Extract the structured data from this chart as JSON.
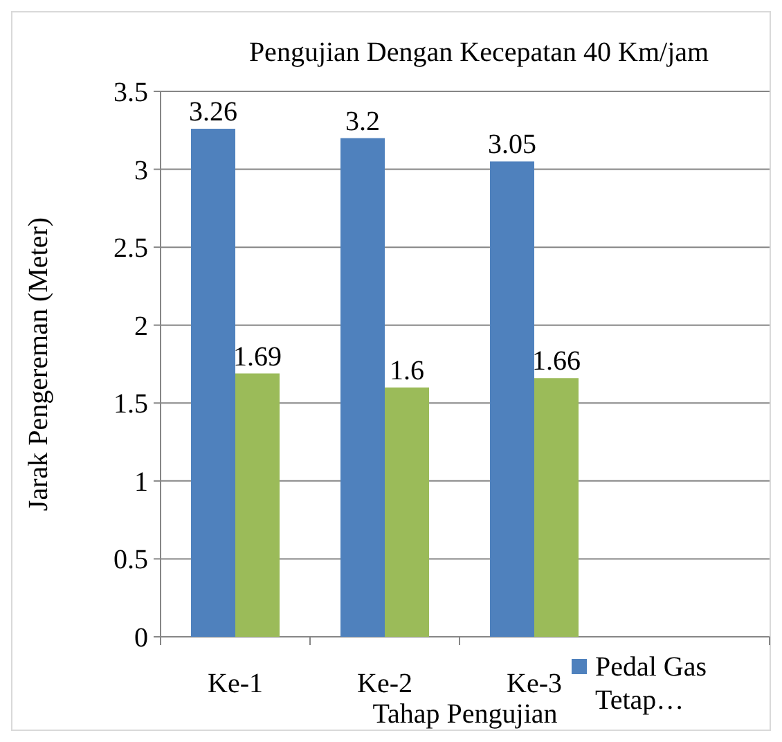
{
  "chart_data": {
    "type": "bar",
    "title": "Pengujian Dengan Kecepatan 40 Km/jam",
    "xlabel": "Tahap Pengujian",
    "ylabel": "Jarak Pengereman (Meter)",
    "categories": [
      "Ke-1",
      "Ke-2",
      "Ke-3"
    ],
    "series": [
      {
        "name": "Pedal Gas Tetap…",
        "color": "#4f81bd",
        "values": [
          3.26,
          3.2,
          3.05
        ]
      },
      {
        "color": "#9bbb59",
        "values": [
          1.69,
          1.6,
          1.66
        ]
      }
    ],
    "ylim": [
      0,
      3.5
    ],
    "yticks": [
      0,
      0.5,
      1,
      1.5,
      2,
      2.5,
      3,
      3.5
    ],
    "grid": "y",
    "data_labels": true,
    "legend": "bottom right"
  }
}
